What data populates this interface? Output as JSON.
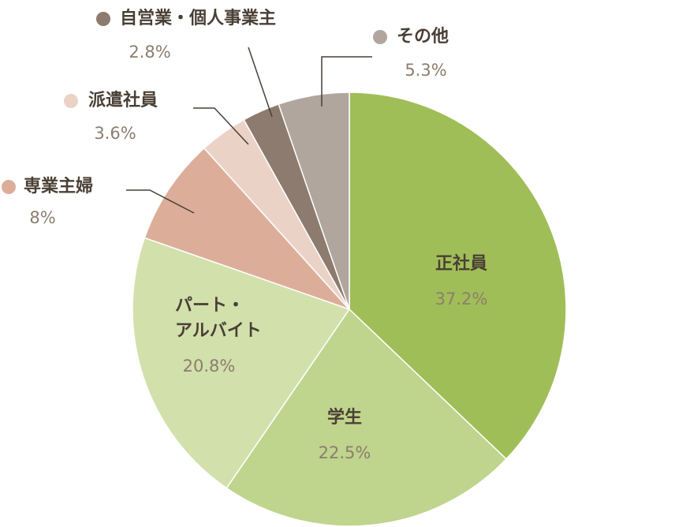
{
  "chart_data": {
    "type": "pie",
    "categories": [
      "正社員",
      "学生",
      "パート・\nアルバイト",
      "専業主婦",
      "派遣社員",
      "自営業・個人事業主",
      "その他"
    ],
    "values": [
      37.2,
      22.5,
      20.8,
      8,
      3.6,
      2.8,
      5.3
    ],
    "value_labels": [
      "37.2%",
      "22.5%",
      "20.8%",
      "8%",
      "3.6%",
      "2.8%",
      "5.3%"
    ],
    "colors": [
      "#a0be58",
      "#bfd48d",
      "#d2e0ac",
      "#dcae9a",
      "#ebd2c7",
      "#8c7b6e",
      "#b0a69e"
    ]
  }
}
